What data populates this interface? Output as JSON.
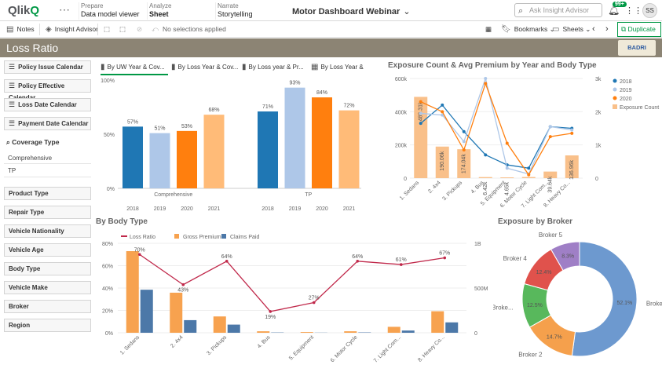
{
  "topbar": {
    "logo": "Qlik",
    "prepare_k": "Prepare",
    "prepare_v": "Data model viewer",
    "analyze_k": "Analyze",
    "analyze_v": "Sheet",
    "narrate_k": "Narrate",
    "narrate_v": "Storytelling",
    "app_title": "Motor Dashboard Webinar",
    "search_placeholder": "Ask Insight Advisor",
    "notif_count": "99+",
    "avatar": "SS"
  },
  "toolbar": {
    "notes": "Notes",
    "insight": "Insight Advisor",
    "no_sel": "No selections applied",
    "bookmarks": "Bookmarks",
    "sheets": "Sheets",
    "duplicate": "Duplicate"
  },
  "sheet": {
    "title": "Loss Ratio",
    "logo_text": "BADRI"
  },
  "filters": {
    "date_filters": [
      "Policy Issue Calendar",
      "Policy Effective Calendar",
      "Loss Date Calendar",
      "Payment Date Calendar"
    ],
    "coverage_label": "Coverage Type",
    "coverage_values": [
      "Comprehensive",
      "TP"
    ],
    "dims": [
      "Product Type",
      "Repair Type",
      "Vehicle Nationality",
      "Vehicle Age",
      "Body Type",
      "Vehicle Make",
      "Broker",
      "Region"
    ]
  },
  "loss_tabs": [
    "By UW Year & Cov...",
    "By Loss Year & Cov...",
    "By Loss year & Pr...",
    "By Loss Year & ..."
  ],
  "colors": {
    "y2018": "#1f77b4",
    "y2019": "#aec7e8",
    "y2020": "#ff7f0e",
    "y2021": "#ffbb78",
    "loss": "#c0284a",
    "gross": "#f7a24f",
    "claims": "#4c78a8",
    "accent": "#009845"
  },
  "chart_data": [
    {
      "type": "bar",
      "id": "loss-ratio",
      "categories": [
        "Comprehensive",
        "TP"
      ],
      "years": [
        "2018",
        "2019",
        "2020",
        "2021"
      ],
      "series": [
        {
          "name": "2018",
          "values": [
            57,
            71
          ]
        },
        {
          "name": "2019",
          "values": [
            51,
            93
          ]
        },
        {
          "name": "2020",
          "values": [
            53,
            84
          ]
        },
        {
          "name": "2021",
          "values": [
            68,
            72
          ]
        }
      ],
      "ylim": [
        0,
        100
      ],
      "yticks": [
        "0%",
        "50%",
        "100%"
      ]
    },
    {
      "type": "bar",
      "id": "exposure",
      "title": "Exposure Count & Avg Premium by Year and Body Type",
      "categories": [
        "1. Sedans",
        "2. 4x4",
        "3. Pickups",
        "4. Bus",
        "5. Equipment",
        "6. Motor Cycle",
        "7. Light Com...",
        "8. Heavy Co..."
      ],
      "bars": [
        489.31,
        190.06,
        174.04,
        6.42,
        4.65,
        6.83,
        39.64,
        136.96
      ],
      "bar_labels": [
        "489.31k",
        "190.06k",
        "174.04k",
        "6.42k",
        "4.65k",
        "",
        "39.64k",
        "136.96k"
      ],
      "series": [
        {
          "name": "2018",
          "values": [
            330,
            440,
            280,
            140,
            80,
            60,
            310,
            300
          ]
        },
        {
          "name": "2019",
          "values": [
            390,
            380,
            220,
            600,
            60,
            25,
            310,
            290
          ]
        },
        {
          "name": "2020",
          "values": [
            460,
            400,
            170,
            570,
            210,
            20,
            250,
            270
          ]
        }
      ],
      "legend": [
        "2018",
        "2019",
        "2020",
        "Exposure Count"
      ],
      "yleft": [
        "0",
        "200k",
        "400k",
        "600k"
      ],
      "yright": [
        "0",
        "1k",
        "2k",
        "3k"
      ]
    },
    {
      "type": "bar",
      "id": "body-type",
      "title": "By Body Type",
      "categories": [
        "1. Sedans",
        "2. 4x4",
        "3. Pickups",
        "4. Bus",
        "5. Equipment",
        "6. Motor Cycle",
        "7. Light Com...",
        "8. Heavy Co..."
      ],
      "legend": [
        "Loss Ratio",
        "Gross Premium",
        "Claims Paid"
      ],
      "loss_ratio": [
        70,
        43,
        64,
        19,
        27,
        64,
        61,
        67
      ],
      "gross": [
        1.1,
        0.54,
        0.22,
        0.02,
        0.01,
        0.02,
        0.08,
        0.29
      ],
      "claims": [
        0.58,
        0.17,
        0.11,
        0.004,
        0.002,
        0.005,
        0.03,
        0.14
      ],
      "yleft": [
        "0%",
        "20%",
        "40%",
        "60%",
        "80%"
      ],
      "yright": [
        "0",
        "500M",
        "1B"
      ]
    },
    {
      "type": "pie",
      "id": "broker",
      "title": "Exposure by Broker",
      "labels": [
        "Broke...",
        "Broker 2",
        "Broke...",
        "Broker 4",
        "Broker 5"
      ],
      "values": [
        52.1,
        14.7,
        12.5,
        12.4,
        8.3
      ],
      "colors": [
        "#6d99cf",
        "#f5a04c",
        "#58b85c",
        "#e0524c",
        "#9f7fc6"
      ]
    }
  ]
}
